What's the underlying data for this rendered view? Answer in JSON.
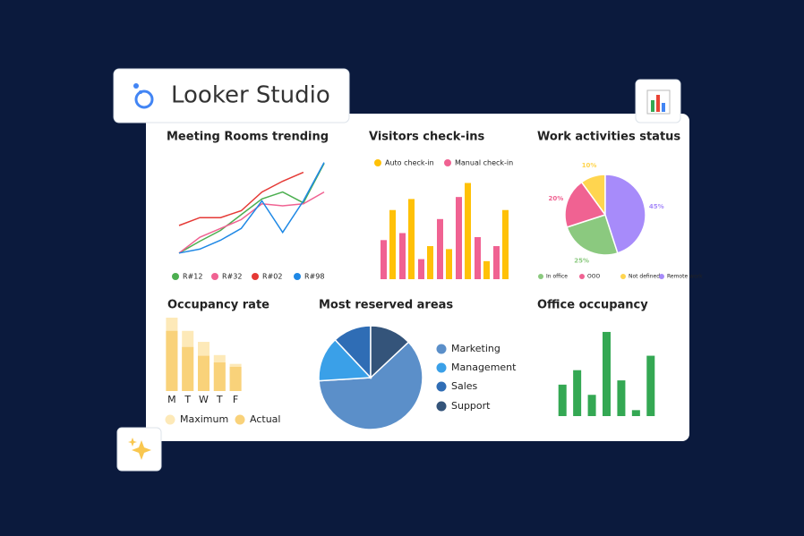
{
  "header": {
    "title": "Looker Studio"
  },
  "chart_data": [
    {
      "type": "line",
      "title": "Meeting Rooms trending",
      "categories": [
        null,
        null,
        null,
        null,
        null,
        null,
        null,
        null
      ],
      "series": [
        {
          "name": "R#12",
          "color": "#4caf50",
          "values": [
            2,
            14,
            25,
            41,
            57,
            64,
            53,
            93
          ]
        },
        {
          "name": "R#32",
          "color": "#f06292",
          "values": [
            2,
            18,
            27,
            36,
            52,
            50,
            52,
            64
          ]
        },
        {
          "name": "R#02",
          "color": "#e53935",
          "values": [
            30,
            38,
            38,
            45,
            64,
            75,
            84,
            null
          ]
        },
        {
          "name": "R#98",
          "color": "#1e88e5",
          "values": [
            2,
            6,
            15,
            27,
            55,
            23,
            55,
            94
          ]
        }
      ],
      "ylim": [
        0,
        100
      ]
    },
    {
      "type": "bar",
      "mode": "grouped",
      "title": "Visitors check-ins",
      "categories": [
        null,
        null,
        null,
        null,
        null,
        null,
        null
      ],
      "series": [
        {
          "name": "Auto check-in",
          "color": "#ffc107",
          "values": [
            69,
            80,
            33,
            30,
            96,
            18,
            69
          ]
        },
        {
          "name": "Manual check-in",
          "color": "#f06292",
          "values": [
            39,
            46,
            20,
            60,
            82,
            42,
            33
          ]
        }
      ],
      "ylim": [
        0,
        100
      ]
    },
    {
      "type": "pie",
      "title": "Work activities status",
      "categories": [
        "In office",
        "OOO",
        "Not defined",
        "Remote work"
      ],
      "values": [
        25,
        20,
        10,
        45
      ],
      "value_labels": [
        "25%",
        "20%",
        "10%",
        "45%"
      ],
      "colors": [
        "#8bc97f",
        "#f06292",
        "#ffd54f",
        "#a78bfa"
      ]
    },
    {
      "type": "bar",
      "mode": "overlay",
      "title": "Occupancy rate",
      "categories": [
        "M",
        "T",
        "W",
        "T",
        "F"
      ],
      "series": [
        {
          "name": "Maximum",
          "color": "#fde9b8",
          "values": [
            100,
            82,
            67,
            49,
            37
          ]
        },
        {
          "name": "Actual",
          "color": "#f9d27a",
          "values": [
            82,
            60,
            48,
            39,
            33
          ]
        }
      ],
      "ylim": [
        0,
        100
      ]
    },
    {
      "type": "pie",
      "title": "Most reserved areas",
      "categories": [
        "Marketing",
        "Management",
        "Sales",
        "Support"
      ],
      "values": [
        61,
        14,
        12,
        13
      ],
      "colors": [
        "#5b8fc9",
        "#3aa0e8",
        "#2f6db5",
        "#34547a"
      ]
    },
    {
      "type": "bar",
      "mode": "single",
      "title": "Office occupancy",
      "categories": [
        null,
        null,
        null,
        null,
        null,
        null,
        null
      ],
      "series": [
        {
          "name": null,
          "color": "#34a853",
          "values": [
            37,
            54,
            25,
            99,
            42,
            7,
            71
          ]
        }
      ],
      "ylim": [
        0,
        100
      ]
    }
  ]
}
